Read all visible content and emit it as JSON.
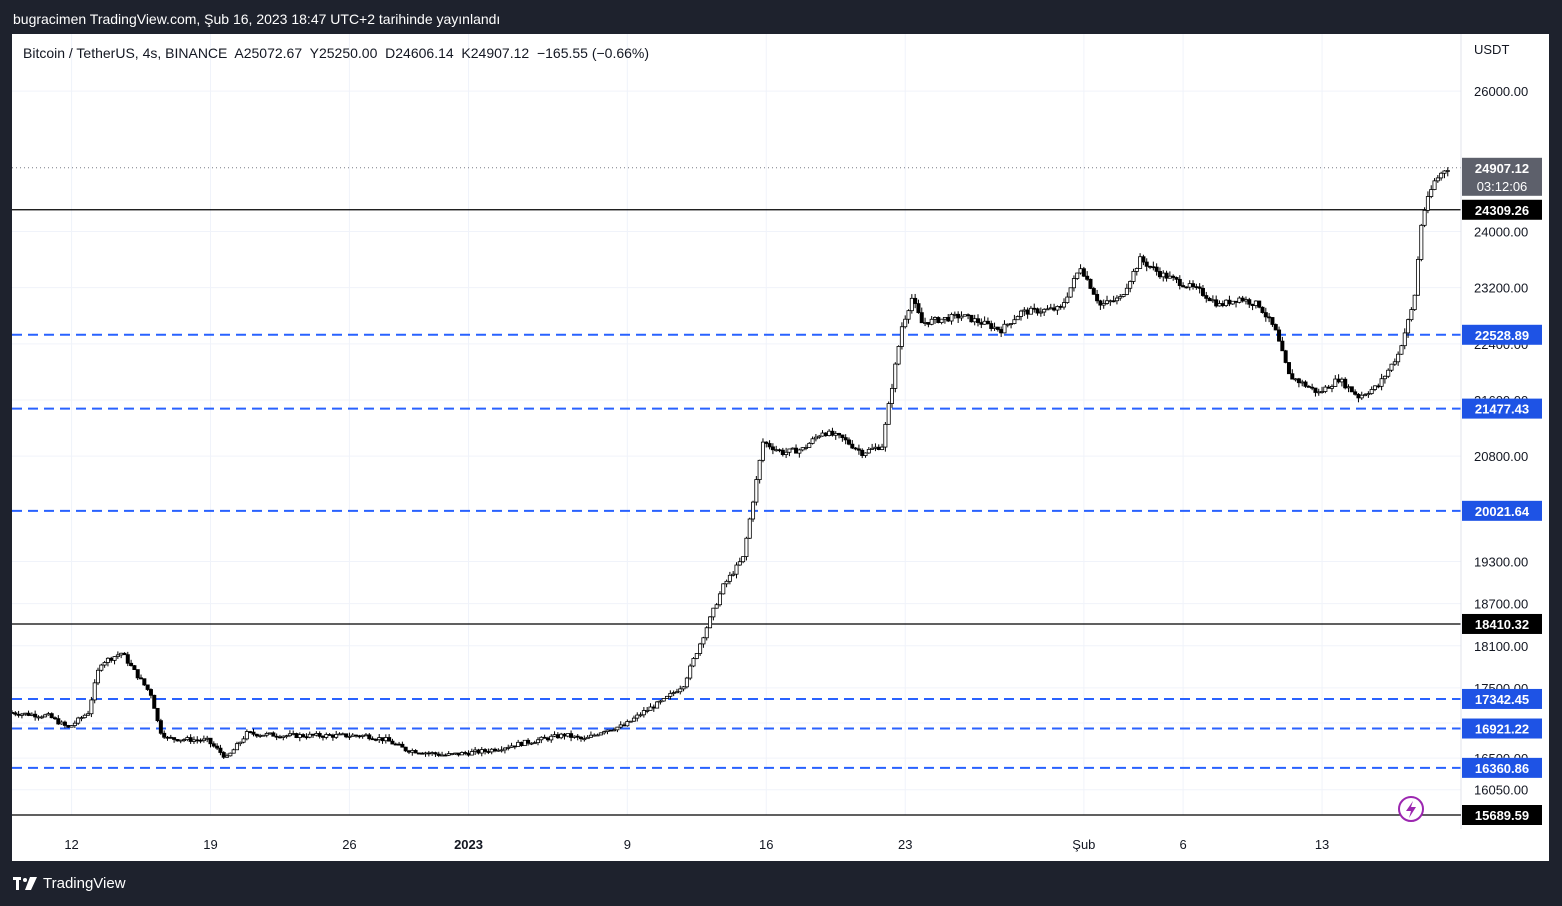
{
  "header": {
    "caption": "bugracimen TradingView.com, Şub 16, 2023 18:47 UTC+2 tarihinde yayınlandı"
  },
  "legend": {
    "text": "Bitcoin / TetherUS, 4s, BINANCE  A25072.67  Y25250.00  D24606.14  K24907.12  −165.55 (−0.66%)"
  },
  "axis": {
    "currency": "USDT"
  },
  "footer": {
    "brand": "TradingView"
  },
  "colors": {
    "background": "#1e222d",
    "chart_bg": "#ffffff",
    "dashed_level": "#2962ff",
    "solid_level": "#000000",
    "candle": "#000000",
    "price_label_bg": "#1e53e5",
    "lightning": "#9c27b0"
  },
  "chart_data": {
    "type": "candlestick",
    "symbol": "Bitcoin / TetherUS",
    "interval": "4s",
    "exchange": "BINANCE",
    "ohlc_last": {
      "open": 25072.67,
      "high": 25250.0,
      "low": 24606.14,
      "close": 24907.12,
      "change": -165.55,
      "change_pct": -0.66
    },
    "ylim": [
      15689.59,
      26300
    ],
    "y_ticks": [
      26000,
      24000,
      23200,
      22400,
      21600,
      20800,
      19300,
      18700,
      18100,
      17500,
      17000,
      16500,
      16050
    ],
    "y_tick_labels": [
      "26000.00",
      "24000.00",
      "23200.00",
      "22400.00",
      "21600.00",
      "20800.00",
      "19300.00",
      "18700.00",
      "18100.00",
      "17500.00",
      "17000.00",
      "16500.00",
      "16050.00"
    ],
    "x_ticks": [
      "12",
      "19",
      "26",
      "2023",
      "9",
      "16",
      "23",
      "Şub",
      "6",
      "13"
    ],
    "x_tick_days": [
      0,
      7,
      14,
      20,
      28,
      35,
      42,
      51,
      56,
      63
    ],
    "x_range_days": [
      -3,
      70
    ],
    "solid_levels": [
      24309.26,
      18410.32,
      15689.59
    ],
    "dashed_levels": [
      22528.89,
      21477.43,
      20021.64,
      17342.45,
      16921.22,
      16360.86
    ],
    "last_price": 24907.12,
    "countdown": "03:12:06",
    "price_path": [
      [
        -3,
        17150
      ],
      [
        -1,
        17100
      ],
      [
        0,
        16930
      ],
      [
        1,
        17150
      ],
      [
        1.6,
        17850
      ],
      [
        2.7,
        18000
      ],
      [
        3.3,
        17750
      ],
      [
        4.2,
        17400
      ],
      [
        4.6,
        16900
      ],
      [
        5,
        16780
      ],
      [
        7,
        16750
      ],
      [
        8,
        16500
      ],
      [
        9,
        16850
      ],
      [
        11,
        16820
      ],
      [
        13,
        16820
      ],
      [
        15,
        16820
      ],
      [
        16,
        16760
      ],
      [
        17,
        16620
      ],
      [
        19,
        16540
      ],
      [
        21,
        16600
      ],
      [
        23,
        16720
      ],
      [
        25,
        16830
      ],
      [
        26,
        16760
      ],
      [
        27,
        16900
      ],
      [
        28,
        16960
      ],
      [
        29,
        17160
      ],
      [
        30,
        17320
      ],
      [
        31,
        17550
      ],
      [
        32,
        18250
      ],
      [
        33,
        18950
      ],
      [
        34,
        19350
      ],
      [
        35,
        21000
      ],
      [
        36,
        20850
      ],
      [
        37,
        20900
      ],
      [
        38,
        21150
      ],
      [
        39,
        21050
      ],
      [
        40,
        20850
      ],
      [
        41,
        20950
      ],
      [
        42,
        22650
      ],
      [
        42.5,
        23050
      ],
      [
        43,
        22700
      ],
      [
        45,
        22800
      ],
      [
        47,
        22600
      ],
      [
        48,
        22850
      ],
      [
        50,
        22900
      ],
      [
        51,
        23500
      ],
      [
        52,
        22950
      ],
      [
        53,
        23050
      ],
      [
        54,
        23600
      ],
      [
        55,
        23400
      ],
      [
        57,
        23150
      ],
      [
        58,
        22950
      ],
      [
        59,
        23050
      ],
      [
        60,
        22950
      ],
      [
        60.8,
        22600
      ],
      [
        61.5,
        21950
      ],
      [
        63,
        21700
      ],
      [
        64,
        21900
      ],
      [
        65,
        21650
      ],
      [
        66,
        21800
      ],
      [
        67,
        22250
      ],
      [
        67.8,
        23000
      ],
      [
        68.2,
        24200
      ],
      [
        68.8,
        24700
      ],
      [
        69.4,
        24907
      ]
    ]
  }
}
